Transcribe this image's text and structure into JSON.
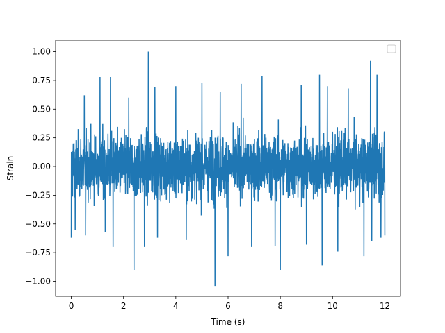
{
  "chart_data": {
    "type": "line",
    "title": "",
    "xlabel": "Time (s)",
    "ylabel": "Strain",
    "xlim": [
      -0.6,
      12.6
    ],
    "ylim": [
      -1.13,
      1.1
    ],
    "x_ticks": [
      0,
      2,
      4,
      6,
      8,
      10,
      12
    ],
    "x_tick_labels": [
      "0",
      "2",
      "4",
      "6",
      "8",
      "10",
      "12"
    ],
    "y_ticks": [
      -1.0,
      -0.75,
      -0.5,
      -0.25,
      0.0,
      0.25,
      0.5,
      0.75,
      1.0
    ],
    "y_tick_labels": [
      "−1.00",
      "−0.75",
      "−0.50",
      "−0.25",
      "0.00",
      "0.25",
      "0.50",
      "0.75",
      "1.00"
    ],
    "grid": false,
    "legend": {
      "placement": "top-right",
      "entries": []
    },
    "series": [
      {
        "color": "#1f77b4",
        "x_range": [
          0,
          12
        ],
        "band_upper": 0.5,
        "band_lower": -0.5,
        "description_points": [
          {
            "x": 0.0,
            "y": 0.6
          },
          {
            "x": 0.0,
            "y": -0.62
          },
          {
            "x": 0.15,
            "y": 0.59
          },
          {
            "x": 0.15,
            "y": -0.55
          },
          {
            "x": 0.5,
            "y": 0.62
          },
          {
            "x": 0.55,
            "y": -0.6
          },
          {
            "x": 1.1,
            "y": 0.78
          },
          {
            "x": 1.3,
            "y": -0.57
          },
          {
            "x": 1.5,
            "y": 0.78
          },
          {
            "x": 1.6,
            "y": -0.7
          },
          {
            "x": 2.2,
            "y": 0.6
          },
          {
            "x": 2.4,
            "y": -0.9
          },
          {
            "x": 2.95,
            "y": 1.0
          },
          {
            "x": 2.8,
            "y": -0.7
          },
          {
            "x": 3.2,
            "y": 0.69
          },
          {
            "x": 3.3,
            "y": -0.62
          },
          {
            "x": 4.0,
            "y": 0.7
          },
          {
            "x": 4.4,
            "y": -0.64
          },
          {
            "x": 5.0,
            "y": 0.73
          },
          {
            "x": 5.5,
            "y": -1.04
          },
          {
            "x": 5.7,
            "y": 0.65
          },
          {
            "x": 6.0,
            "y": -0.78
          },
          {
            "x": 6.5,
            "y": 0.72
          },
          {
            "x": 6.9,
            "y": -0.7
          },
          {
            "x": 7.3,
            "y": 0.79
          },
          {
            "x": 7.8,
            "y": -0.69
          },
          {
            "x": 8.0,
            "y": 0.76
          },
          {
            "x": 8.0,
            "y": -0.9
          },
          {
            "x": 8.8,
            "y": 0.71
          },
          {
            "x": 9.0,
            "y": -0.68
          },
          {
            "x": 9.5,
            "y": 0.8
          },
          {
            "x": 9.6,
            "y": -0.86
          },
          {
            "x": 9.8,
            "y": 0.7
          },
          {
            "x": 10.2,
            "y": -0.74
          },
          {
            "x": 10.6,
            "y": 0.68
          },
          {
            "x": 11.2,
            "y": -0.78
          },
          {
            "x": 11.45,
            "y": 0.92
          },
          {
            "x": 11.5,
            "y": -0.65
          },
          {
            "x": 11.7,
            "y": 0.8
          },
          {
            "x": 11.85,
            "y": -0.62
          },
          {
            "x": 12.0,
            "y": 0.54
          },
          {
            "x": 12.0,
            "y": -0.6
          }
        ]
      }
    ]
  }
}
